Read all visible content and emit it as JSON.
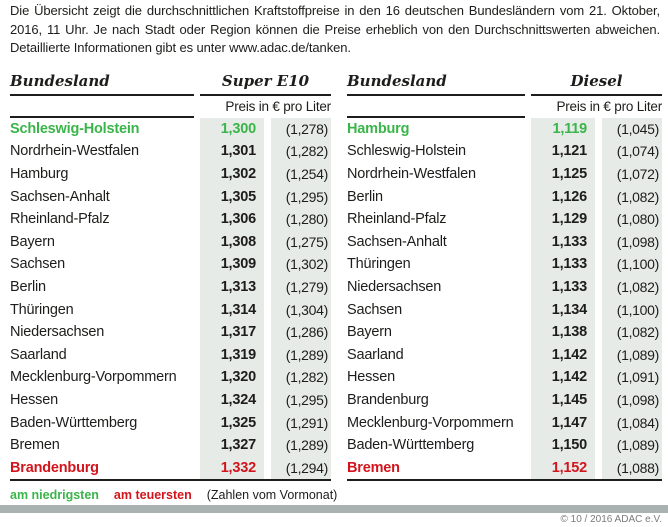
{
  "intro": {
    "text": "Die Übersicht zeigt die durchschnittlichen Kraftstoffpreise in den 16 deutschen Bundesländern vom 21. Oktober, 2016, 11 Uhr. Je nach Stadt oder Region können die Preise erheblich von den Durchschnittswerten abweichen. Detaillierte Informationen gibt es unter www.adac.de/tanken."
  },
  "colors": {
    "green": "#3ab54a",
    "red": "#d2151c",
    "cell_bg": "#e7ebe8",
    "bar": "#a9b2b1"
  },
  "chart_data": {
    "type": "table",
    "title": "Durchschnittliche Kraftstoffpreise in den 16 deutschen Bundesländern, 21. Oktober 2016, 11 Uhr",
    "unit": "€ pro Liter",
    "tables": [
      {
        "fuel_label": "Super E10",
        "state_header": "Bundesland",
        "price_header": "Preis in € pro Liter",
        "rows": [
          {
            "state": "Schleswig-Holstein",
            "price": "1,300",
            "prev": "(1,278)",
            "highlight": "green"
          },
          {
            "state": "Nordrhein-Westfalen",
            "price": "1,301",
            "prev": "(1,282)",
            "highlight": "none"
          },
          {
            "state": "Hamburg",
            "price": "1,302",
            "prev": "(1,254)",
            "highlight": "none"
          },
          {
            "state": "Sachsen-Anhalt",
            "price": "1,305",
            "prev": "(1,295)",
            "highlight": "none"
          },
          {
            "state": "Rheinland-Pfalz",
            "price": "1,306",
            "prev": "(1,280)",
            "highlight": "none"
          },
          {
            "state": "Bayern",
            "price": "1,308",
            "prev": "(1,275)",
            "highlight": "none"
          },
          {
            "state": "Sachsen",
            "price": "1,309",
            "prev": "(1,302)",
            "highlight": "none"
          },
          {
            "state": "Berlin",
            "price": "1,313",
            "prev": "(1,279)",
            "highlight": "none"
          },
          {
            "state": "Thüringen",
            "price": "1,314",
            "prev": "(1,304)",
            "highlight": "none"
          },
          {
            "state": "Niedersachsen",
            "price": "1,317",
            "prev": "(1,286)",
            "highlight": "none"
          },
          {
            "state": "Saarland",
            "price": "1,319",
            "prev": "(1,289)",
            "highlight": "none"
          },
          {
            "state": "Mecklenburg-Vorpommern",
            "price": "1,320",
            "prev": "(1,282)",
            "highlight": "none"
          },
          {
            "state": "Hessen",
            "price": "1,324",
            "prev": "(1,295)",
            "highlight": "none"
          },
          {
            "state": "Baden-Württemberg",
            "price": "1,325",
            "prev": "(1,291)",
            "highlight": "none"
          },
          {
            "state": "Bremen",
            "price": "1,327",
            "prev": "(1,289)",
            "highlight": "none"
          },
          {
            "state": "Brandenburg",
            "price": "1,332",
            "prev": "(1,294)",
            "highlight": "red"
          }
        ]
      },
      {
        "fuel_label": "Diesel",
        "state_header": "Bundesland",
        "price_header": "Preis in € pro Liter",
        "rows": [
          {
            "state": "Hamburg",
            "price": "1,119",
            "prev": "(1,045)",
            "highlight": "green"
          },
          {
            "state": "Schleswig-Holstein",
            "price": "1,121",
            "prev": "(1,074)",
            "highlight": "none"
          },
          {
            "state": "Nordrhein-Westfalen",
            "price": "1,125",
            "prev": "(1,072)",
            "highlight": "none"
          },
          {
            "state": "Berlin",
            "price": "1,126",
            "prev": "(1,082)",
            "highlight": "none"
          },
          {
            "state": "Rheinland-Pfalz",
            "price": "1,129",
            "prev": "(1,080)",
            "highlight": "none"
          },
          {
            "state": "Sachsen-Anhalt",
            "price": "1,133",
            "prev": "(1,098)",
            "highlight": "none"
          },
          {
            "state": "Thüringen",
            "price": "1,133",
            "prev": "(1,100)",
            "highlight": "none"
          },
          {
            "state": "Niedersachsen",
            "price": "1,133",
            "prev": "(1,082)",
            "highlight": "none"
          },
          {
            "state": "Sachsen",
            "price": "1,134",
            "prev": "(1,100)",
            "highlight": "none"
          },
          {
            "state": "Bayern",
            "price": "1,138",
            "prev": "(1,082)",
            "highlight": "none"
          },
          {
            "state": "Saarland",
            "price": "1,142",
            "prev": "(1,089)",
            "highlight": "none"
          },
          {
            "state": "Hessen",
            "price": "1,142",
            "prev": "(1,091)",
            "highlight": "none"
          },
          {
            "state": "Brandenburg",
            "price": "1,145",
            "prev": "(1,098)",
            "highlight": "none"
          },
          {
            "state": "Mecklenburg-Vorpommern",
            "price": "1,147",
            "prev": "(1,084)",
            "highlight": "none"
          },
          {
            "state": "Baden-Württemberg",
            "price": "1,150",
            "prev": "(1,089)",
            "highlight": "none"
          },
          {
            "state": "Bremen",
            "price": "1,152",
            "prev": "(1,088)",
            "highlight": "red"
          }
        ]
      }
    ]
  },
  "legend": {
    "lowest": "am niedrigsten",
    "highest": "am teuersten",
    "note": "(Zahlen vom Vormonat)"
  },
  "footer": {
    "copyright": "© 10 / 2016 ADAC e.V."
  }
}
